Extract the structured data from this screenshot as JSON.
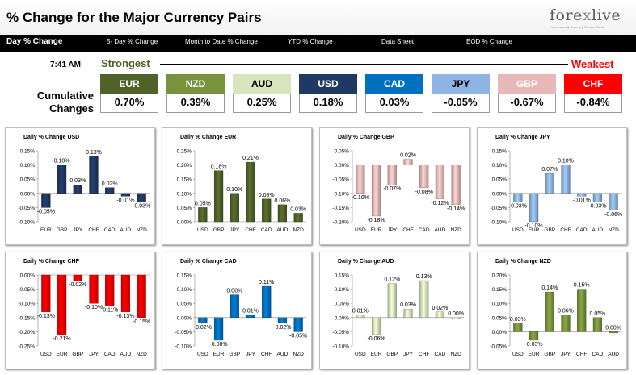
{
  "header": {
    "title": "% Change for the Major Currency Pairs",
    "logo": {
      "name": "forexlive",
      "tagline": "Forex news & Currency Window Tools"
    }
  },
  "nav": {
    "tabs": [
      {
        "label": "Day % Change",
        "active": true
      },
      {
        "label": "5- Day % Change",
        "active": false
      },
      {
        "label": "Month to Date % Change",
        "active": false
      },
      {
        "label": "YTD % Change",
        "active": false
      },
      {
        "label": "Data Sheet",
        "active": false
      },
      {
        "label": "EOD % Change",
        "active": false
      }
    ]
  },
  "summary": {
    "time": "7:41 AM",
    "strongest_label": "Strongest",
    "weakest_label": "Weakest",
    "cumulative_label": "Cumulative Changes",
    "currencies": [
      {
        "code": "EUR",
        "value": "0.70%",
        "color": "#4f6228"
      },
      {
        "code": "NZD",
        "value": "0.39%",
        "color": "#77933c"
      },
      {
        "code": "AUD",
        "value": "0.25%",
        "color": "#d7e4bd",
        "text_color": "#000000"
      },
      {
        "code": "USD",
        "value": "0.18%",
        "color": "#1f3864"
      },
      {
        "code": "CAD",
        "value": "0.03%",
        "color": "#0070c0"
      },
      {
        "code": "JPY",
        "value": "-0.05%",
        "color": "#8db4e2",
        "text_color": "#000000"
      },
      {
        "code": "GBP",
        "value": "-0.67%",
        "color": "#e6b9b8"
      },
      {
        "code": "CHF",
        "value": "-0.84%",
        "color": "#ff0000"
      }
    ]
  },
  "chart_data": [
    {
      "type": "bar",
      "title": "Daily % Change USD",
      "categories": [
        "EUR",
        "GBP",
        "JPY",
        "CHF",
        "CAD",
        "AUD",
        "NZD"
      ],
      "values": [
        -0.05,
        0.1,
        0.03,
        0.13,
        0.02,
        -0.01,
        -0.03
      ],
      "labels": [
        "-0.05%",
        "0.10%",
        "0.03%",
        "0.13%",
        "0.02%",
        "-0.01%",
        "-0.03%"
      ],
      "ylim": [
        -0.1,
        0.15
      ],
      "yticks": [
        "-0.10%",
        "-0.05%",
        "0.00%",
        "0.05%",
        "0.10%",
        "0.15%"
      ],
      "color": "#1f3864"
    },
    {
      "type": "bar",
      "title": "Daily % Change EUR",
      "categories": [
        "USD",
        "GBP",
        "JPY",
        "CHF",
        "CAD",
        "AUD",
        "NZD"
      ],
      "values": [
        0.05,
        0.18,
        0.1,
        0.21,
        0.08,
        0.06,
        0.03
      ],
      "labels": [
        "0.05%",
        "0.18%",
        "0.10%",
        "0.21%",
        "0.08%",
        "0.06%",
        "0.03%"
      ],
      "ylim": [
        0.0,
        0.25
      ],
      "yticks": [
        "0.00%",
        "0.05%",
        "0.10%",
        "0.15%",
        "0.20%",
        "0.25%"
      ],
      "color": "#4f6228"
    },
    {
      "type": "bar",
      "title": "Daily % Change GBP",
      "categories": [
        "USD",
        "EUR",
        "JPY",
        "CHF",
        "CAD",
        "AUD",
        "NZD"
      ],
      "values": [
        -0.1,
        -0.18,
        -0.07,
        0.02,
        -0.08,
        -0.12,
        -0.14
      ],
      "labels": [
        "-0.10%",
        "-0.18%",
        "-0.07%",
        "0.02%",
        "-0.08%",
        "-0.12%",
        "-0.14%"
      ],
      "ylim": [
        -0.2,
        0.05
      ],
      "yticks": [
        "-0.20%",
        "-0.15%",
        "-0.10%",
        "-0.05%",
        "0.00%",
        "0.05%"
      ],
      "color": "#e6b9b8"
    },
    {
      "type": "bar",
      "title": "Daily % Change JPY",
      "categories": [
        "USD",
        "EUR",
        "GBP",
        "CHF",
        "CAD",
        "AUD",
        "NZD"
      ],
      "values": [
        -0.03,
        -0.1,
        0.07,
        0.1,
        -0.01,
        -0.03,
        -0.06
      ],
      "labels": [
        "-0.03%",
        "-0.10%",
        "0.07%",
        "0.10%",
        "-0.01%",
        "-0.03%",
        "-0.06%"
      ],
      "ylim": [
        -0.1,
        0.15
      ],
      "yticks": [
        "-0.10%",
        "-0.05%",
        "0.00%",
        "0.05%",
        "0.10%",
        "0.15%"
      ],
      "color": "#8db4e2"
    },
    {
      "type": "bar",
      "title": "Daily % Change CHF",
      "categories": [
        "USD",
        "EUR",
        "GBP",
        "JPY",
        "CAD",
        "AUD",
        "NZD"
      ],
      "values": [
        -0.13,
        -0.21,
        -0.02,
        -0.1,
        -0.11,
        -0.13,
        -0.15
      ],
      "labels": [
        "-0.13%",
        "-0.21%",
        "-0.02%",
        "-0.10%",
        "-0.11%",
        "-0.13%",
        "-0.15%"
      ],
      "ylim": [
        -0.25,
        0.0
      ],
      "yticks": [
        "-0.25%",
        "-0.20%",
        "-0.15%",
        "-0.10%",
        "-0.05%",
        "0.00%"
      ],
      "color": "#ff0000"
    },
    {
      "type": "bar",
      "title": "Daily % Change CAD",
      "categories": [
        "USD",
        "EUR",
        "GBP",
        "JPY",
        "CHF",
        "AUD",
        "NZD"
      ],
      "values": [
        -0.02,
        -0.08,
        0.08,
        0.01,
        0.11,
        -0.02,
        -0.05
      ],
      "labels": [
        "-0.02%",
        "-0.08%",
        "0.08%",
        "0.01%",
        "0.11%",
        "-0.02%",
        "-0.05%"
      ],
      "ylim": [
        -0.1,
        0.15
      ],
      "yticks": [
        "-0.10%",
        "-0.05%",
        "0.00%",
        "0.05%",
        "0.10%",
        "0.15%"
      ],
      "color": "#0070c0"
    },
    {
      "type": "bar",
      "title": "Daily % Change AUD",
      "categories": [
        "USD",
        "EUR",
        "GBP",
        "JPY",
        "CHF",
        "CAD",
        "NZD"
      ],
      "values": [
        0.01,
        -0.06,
        0.12,
        0.03,
        0.13,
        0.02,
        0.0
      ],
      "labels": [
        "0.01%",
        "-0.06%",
        "0.12%",
        "0.03%",
        "0.13%",
        "0.02%",
        "0.00%"
      ],
      "ylim": [
        -0.1,
        0.15
      ],
      "yticks": [
        "-0.10%",
        "-0.05%",
        "0.00%",
        "0.05%",
        "0.10%",
        "0.15%"
      ],
      "color": "#d7e4bd"
    },
    {
      "type": "bar",
      "title": "Daily % Change NZD",
      "categories": [
        "USD",
        "EUR",
        "GBP",
        "JPY",
        "CHF",
        "CAD",
        "AUD"
      ],
      "values": [
        0.03,
        -0.03,
        0.14,
        0.06,
        0.15,
        0.05,
        0.0
      ],
      "labels": [
        "0.03%",
        "-0.03%",
        "0.14%",
        "0.06%",
        "0.15%",
        "0.05%",
        "0.00%"
      ],
      "ylim": [
        -0.05,
        0.2
      ],
      "yticks": [
        "-0.05%",
        "0.00%",
        "0.05%",
        "0.10%",
        "0.15%",
        "0.20%"
      ],
      "color": "#77933c"
    }
  ]
}
